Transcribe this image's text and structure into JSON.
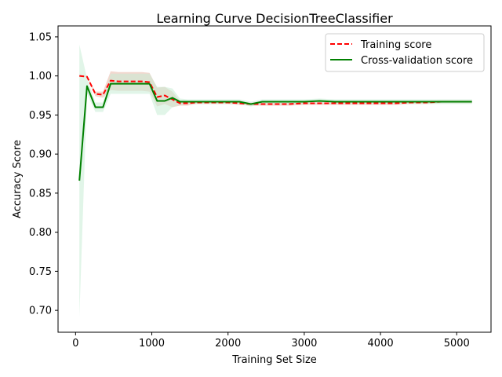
{
  "chart_data": {
    "type": "line",
    "title": "Learning Curve DecisionTreeClassifier",
    "xlabel": "Training Set Size",
    "ylabel": "Accuracy Score",
    "xlim": [
      -230,
      5450
    ],
    "ylim": [
      0.672,
      1.064
    ],
    "xticks": [
      0,
      1000,
      2000,
      3000,
      4000,
      5000
    ],
    "yticks": [
      0.7,
      0.75,
      0.8,
      0.85,
      0.9,
      0.95,
      1.0,
      1.05
    ],
    "ytick_labels": [
      "0.70",
      "0.75",
      "0.80",
      "0.85",
      "0.90",
      "0.95",
      "1.00",
      "1.05"
    ],
    "legend_position": "top-right",
    "grid": false,
    "series": [
      {
        "name": "Training score",
        "color": "#ff0000",
        "style": "dashed",
        "band_color": "#e8b8a8",
        "x": [
          50,
          150,
          260,
          360,
          460,
          560,
          660,
          770,
          870,
          970,
          1070,
          1170,
          1270,
          1370,
          1470,
          1580,
          1700,
          1850,
          2000,
          2150,
          2300,
          2450,
          2600,
          2800,
          3000,
          3200,
          3400,
          3600,
          3800,
          4000,
          4200,
          4400,
          4600,
          4800,
          5000,
          5200
        ],
        "y": [
          1.0,
          0.999,
          0.977,
          0.976,
          0.994,
          0.993,
          0.993,
          0.993,
          0.993,
          0.992,
          0.973,
          0.975,
          0.97,
          0.965,
          0.965,
          0.966,
          0.966,
          0.966,
          0.966,
          0.965,
          0.964,
          0.964,
          0.964,
          0.964,
          0.965,
          0.965,
          0.965,
          0.965,
          0.965,
          0.965,
          0.965,
          0.966,
          0.966,
          0.967,
          0.967,
          0.967
        ],
        "band_half_width": [
          0.0,
          0.001,
          0.003,
          0.004,
          0.012,
          0.012,
          0.012,
          0.012,
          0.012,
          0.012,
          0.012,
          0.011,
          0.01,
          0.003,
          0.003,
          0.002,
          0.002,
          0.002,
          0.002,
          0.002,
          0.002,
          0.002,
          0.002,
          0.002,
          0.002,
          0.002,
          0.002,
          0.002,
          0.002,
          0.002,
          0.002,
          0.002,
          0.002,
          0.002,
          0.002,
          0.002
        ]
      },
      {
        "name": "Cross-validation score",
        "color": "#008000",
        "style": "solid",
        "band_color": "#c8ecd6",
        "x": [
          50,
          150,
          260,
          360,
          460,
          560,
          660,
          770,
          870,
          970,
          1070,
          1170,
          1270,
          1370,
          1470,
          1580,
          1700,
          1850,
          2000,
          2150,
          2300,
          2450,
          2600,
          2800,
          3000,
          3200,
          3400,
          3600,
          3800,
          4000,
          4200,
          4400,
          4600,
          4800,
          5000,
          5200
        ],
        "y": [
          0.866,
          0.987,
          0.96,
          0.96,
          0.99,
          0.99,
          0.99,
          0.99,
          0.99,
          0.99,
          0.968,
          0.968,
          0.972,
          0.967,
          0.967,
          0.967,
          0.967,
          0.967,
          0.967,
          0.967,
          0.964,
          0.967,
          0.967,
          0.967,
          0.967,
          0.968,
          0.967,
          0.967,
          0.967,
          0.967,
          0.967,
          0.967,
          0.967,
          0.967,
          0.967,
          0.967
        ],
        "band_half_width": [
          0.174,
          0.01,
          0.006,
          0.006,
          0.013,
          0.013,
          0.013,
          0.013,
          0.013,
          0.013,
          0.018,
          0.018,
          0.012,
          0.004,
          0.003,
          0.003,
          0.003,
          0.003,
          0.003,
          0.003,
          0.003,
          0.003,
          0.003,
          0.003,
          0.003,
          0.003,
          0.003,
          0.003,
          0.003,
          0.003,
          0.003,
          0.003,
          0.003,
          0.003,
          0.003,
          0.003
        ]
      }
    ]
  }
}
